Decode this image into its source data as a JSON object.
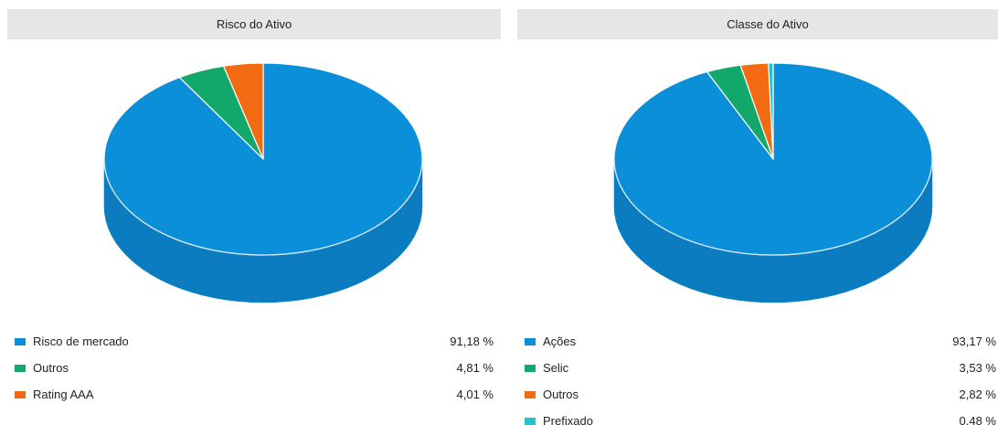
{
  "chart_data": [
    {
      "type": "pie",
      "title": "Risco do Ativo",
      "slices": [
        {
          "label": "Risco de mercado",
          "value": 91.18,
          "display": "91,18 %",
          "color": "#0a8fd8",
          "side": "#0b7cc0"
        },
        {
          "label": "Outros",
          "value": 4.81,
          "display": "4,81 %",
          "color": "#12a86b",
          "side": "#0e8e5a"
        },
        {
          "label": "Rating AAA",
          "value": 4.01,
          "display": "4,01 %",
          "color": "#f26a12",
          "side": "#d25a0c"
        }
      ],
      "legend_position": "bottom",
      "three_d": true
    },
    {
      "type": "pie",
      "title": "Classe do Ativo",
      "slices": [
        {
          "label": "Ações",
          "value": 93.17,
          "display": "93,17 %",
          "color": "#0a8fd8",
          "side": "#0b7cc0"
        },
        {
          "label": "Selic",
          "value": 3.53,
          "display": "3,53 %",
          "color": "#12a86b",
          "side": "#0e8e5a"
        },
        {
          "label": "Outros",
          "value": 2.82,
          "display": "2,82 %",
          "color": "#f26a12",
          "side": "#d25a0c"
        },
        {
          "label": "Prefixado",
          "value": 0.48,
          "display": "0,48 %",
          "color": "#22c4cf",
          "side": "#1aa9b3"
        }
      ],
      "legend_position": "bottom",
      "three_d": true
    }
  ]
}
